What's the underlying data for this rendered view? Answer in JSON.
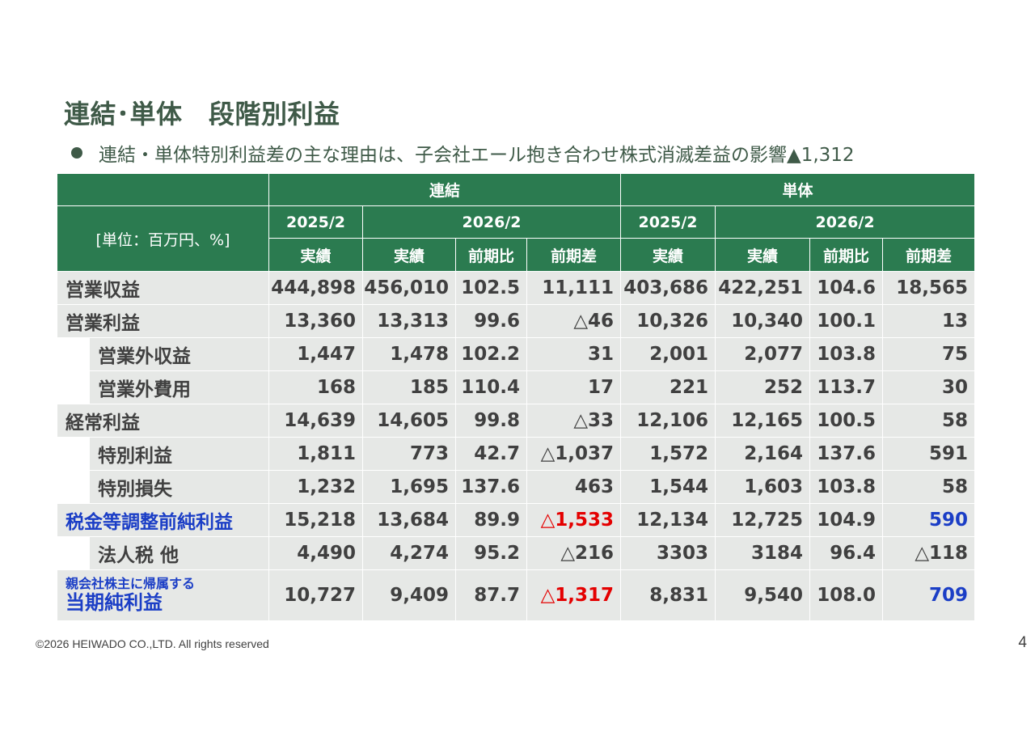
{
  "title": "連結･単体　段階別利益",
  "bullet": "連結・単体特別利益差の主な理由は、子会社エール抱き合わせ株式消滅差益の影響▲1,312",
  "table": {
    "group_consolidated": "連結",
    "group_standalone": "単体",
    "unit": "[単位：百万円、%]",
    "year_prev": "2025/2",
    "year_curr": "2026/2",
    "col_actual": "実績",
    "col_yoy_ratio": "前期比",
    "col_yoy_diff": "前期差",
    "rows": [
      {
        "label": "営業収益",
        "sublabel": "",
        "cells": [
          "444,898",
          "456,010",
          "102.5",
          "11,111",
          "403,686",
          "422,251",
          "104.6",
          "18,565"
        ]
      },
      {
        "label": "営業利益",
        "sublabel": "",
        "cells": [
          "13,360",
          "13,313",
          "99.6",
          "△46",
          "10,326",
          "10,340",
          "100.1",
          "13"
        ]
      },
      {
        "label": "営業外収益",
        "sublabel": "",
        "cells": [
          "1,447",
          "1,478",
          "102.2",
          "31",
          "2,001",
          "2,077",
          "103.8",
          "75"
        ]
      },
      {
        "label": "営業外費用",
        "sublabel": "",
        "cells": [
          "168",
          "185",
          "110.4",
          "17",
          "221",
          "252",
          "113.7",
          "30"
        ]
      },
      {
        "label": "経常利益",
        "sublabel": "",
        "cells": [
          "14,639",
          "14,605",
          "99.8",
          "△33",
          "12,106",
          "12,165",
          "100.5",
          "58"
        ]
      },
      {
        "label": "特別利益",
        "sublabel": "",
        "cells": [
          "1,811",
          "773",
          "42.7",
          "△1,037",
          "1,572",
          "2,164",
          "137.6",
          "591"
        ]
      },
      {
        "label": "特別損失",
        "sublabel": "",
        "cells": [
          "1,232",
          "1,695",
          "137.6",
          "463",
          "1,544",
          "1,603",
          "103.8",
          "58"
        ]
      },
      {
        "label": "税金等調整前純利益",
        "sublabel": "",
        "cells": [
          "15,218",
          "13,684",
          "89.9",
          "△1,533",
          "12,134",
          "12,725",
          "104.9",
          "590"
        ]
      },
      {
        "label": "法人税 他",
        "sublabel": "",
        "cells": [
          "4,490",
          "4,274",
          "95.2",
          "△216",
          "3303",
          "3184",
          "96.4",
          "△118"
        ]
      },
      {
        "label": "当期純利益",
        "sublabel": "親会社株主に帰属する",
        "cells": [
          "10,727",
          "9,409",
          "87.7",
          "△1,317",
          "8,831",
          "9,540",
          "108.0",
          "709"
        ]
      }
    ]
  },
  "colors": {
    "header_green": "#2b7b50",
    "title_green": "#3f5a48",
    "row_gray": "#e6e8e6",
    "highlight_blue": "#1b3ec6",
    "highlight_red": "#e40000"
  },
  "footer": "©2026  HEIWADO CO.,LTD.  All rights reserved",
  "page_number": "4"
}
